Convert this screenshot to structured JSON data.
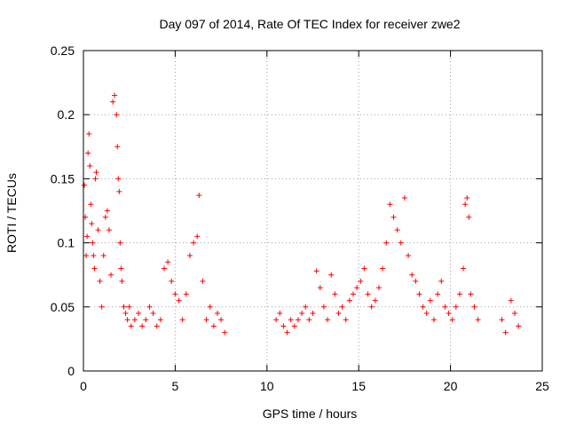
{
  "chart_data": {
    "type": "scatter",
    "title": "Day 097 of 2014, Rate Of TEC Index for receiver zwe2",
    "xlabel": "GPS time / hours",
    "ylabel": "ROTI / TECUs",
    "xlim": [
      0,
      25
    ],
    "ylim": [
      0,
      0.25
    ],
    "xticks": [
      0,
      5,
      10,
      15,
      20,
      25
    ],
    "yticks": [
      0,
      0.05,
      0.1,
      0.15,
      0.2,
      0.25
    ],
    "xtick_labels": [
      "0",
      "5",
      "10",
      "15",
      "20",
      "25"
    ],
    "ytick_labels": [
      "0",
      "0.05",
      "0.1",
      "0.15",
      "0.2",
      "0.25"
    ],
    "grid": true,
    "marker": "+",
    "color": "#ff0000",
    "series": [
      {
        "name": "ROTI",
        "x": [
          0.05,
          0.1,
          0.15,
          0.2,
          0.25,
          0.3,
          0.35,
          0.4,
          0.45,
          0.5,
          0.55,
          0.6,
          0.65,
          0.7,
          0.8,
          0.9,
          1.0,
          1.1,
          1.2,
          1.3,
          1.4,
          1.5,
          1.6,
          1.7,
          1.8,
          1.85,
          1.9,
          1.95,
          2.0,
          2.05,
          2.1,
          2.2,
          2.3,
          2.4,
          2.5,
          2.6,
          2.8,
          3.0,
          3.2,
          3.4,
          3.6,
          3.8,
          4.0,
          4.2,
          4.4,
          4.6,
          4.8,
          5.0,
          5.2,
          5.4,
          5.6,
          5.8,
          6.0,
          6.2,
          6.3,
          6.5,
          6.7,
          6.9,
          7.1,
          7.3,
          7.5,
          7.7,
          10.5,
          10.7,
          10.9,
          11.1,
          11.3,
          11.5,
          11.7,
          11.9,
          12.1,
          12.3,
          12.5,
          12.7,
          12.9,
          13.1,
          13.3,
          13.5,
          13.7,
          13.9,
          14.1,
          14.3,
          14.5,
          14.7,
          14.9,
          15.1,
          15.3,
          15.5,
          15.7,
          15.9,
          16.1,
          16.3,
          16.5,
          16.7,
          16.9,
          17.1,
          17.3,
          17.5,
          17.7,
          17.9,
          18.1,
          18.3,
          18.5,
          18.7,
          18.9,
          19.1,
          19.3,
          19.5,
          19.7,
          19.9,
          20.1,
          20.3,
          20.5,
          20.7,
          20.8,
          20.9,
          21.0,
          21.1,
          21.3,
          21.5,
          22.8,
          23.0,
          23.3,
          23.5,
          23.7
        ],
        "y": [
          0.145,
          0.12,
          0.09,
          0.105,
          0.17,
          0.185,
          0.16,
          0.13,
          0.115,
          0.1,
          0.09,
          0.08,
          0.15,
          0.155,
          0.11,
          0.07,
          0.05,
          0.09,
          0.12,
          0.125,
          0.11,
          0.075,
          0.21,
          0.215,
          0.2,
          0.175,
          0.15,
          0.14,
          0.1,
          0.08,
          0.07,
          0.05,
          0.045,
          0.04,
          0.05,
          0.035,
          0.04,
          0.045,
          0.035,
          0.04,
          0.05,
          0.045,
          0.035,
          0.04,
          0.08,
          0.085,
          0.07,
          0.06,
          0.055,
          0.04,
          0.06,
          0.09,
          0.1,
          0.105,
          0.137,
          0.07,
          0.04,
          0.05,
          0.035,
          0.045,
          0.04,
          0.03,
          0.04,
          0.045,
          0.035,
          0.03,
          0.04,
          0.035,
          0.04,
          0.045,
          0.05,
          0.04,
          0.045,
          0.078,
          0.065,
          0.05,
          0.04,
          0.075,
          0.06,
          0.045,
          0.05,
          0.04,
          0.055,
          0.06,
          0.065,
          0.07,
          0.08,
          0.06,
          0.05,
          0.055,
          0.065,
          0.08,
          0.1,
          0.13,
          0.12,
          0.11,
          0.1,
          0.135,
          0.09,
          0.075,
          0.07,
          0.06,
          0.05,
          0.045,
          0.055,
          0.04,
          0.06,
          0.07,
          0.05,
          0.045,
          0.04,
          0.05,
          0.06,
          0.08,
          0.13,
          0.135,
          0.12,
          0.06,
          0.05,
          0.04,
          0.04,
          0.03,
          0.055,
          0.045,
          0.035
        ]
      }
    ]
  }
}
